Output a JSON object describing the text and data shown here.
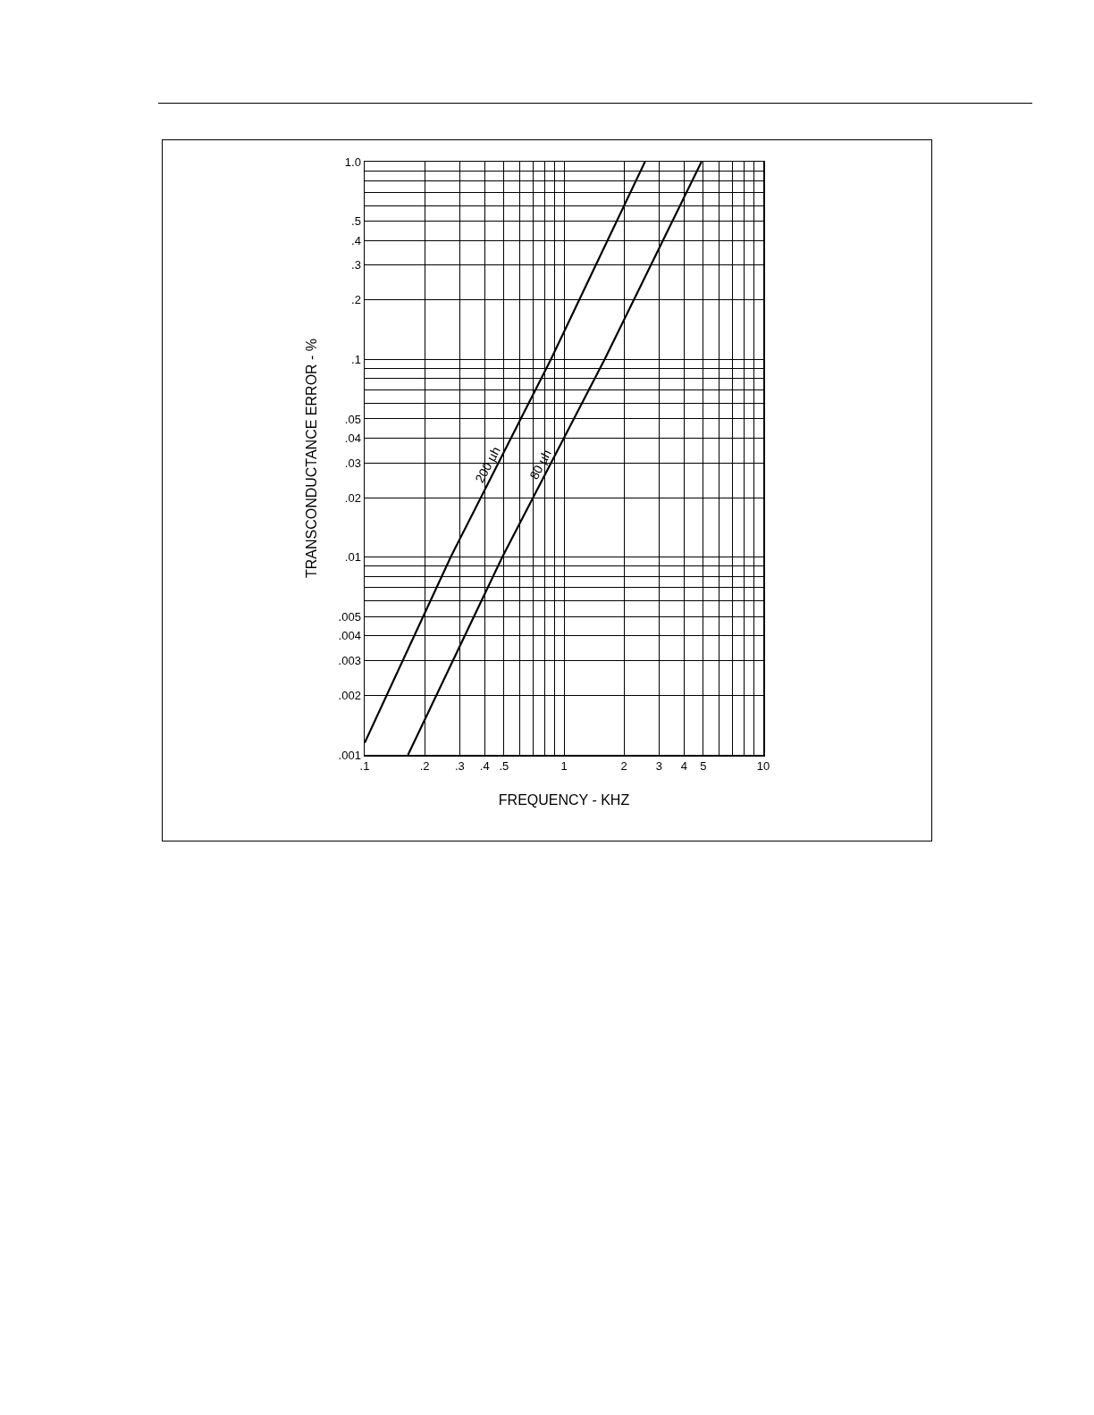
{
  "chart_data": {
    "type": "line",
    "xlabel": "FREQUENCY - KHZ",
    "ylabel": "TRANSCONDUCTANCE ERROR - %",
    "log": "xy",
    "grid": true,
    "marker": "none",
    "line_style": "solid",
    "xlim": [
      0.1,
      10
    ],
    "ylim": [
      0.001,
      1.0
    ],
    "xticks": [
      {
        "value": 0.1,
        "label": ".1"
      },
      {
        "value": 0.2,
        "label": ".2"
      },
      {
        "value": 0.3,
        "label": ".3"
      },
      {
        "value": 0.4,
        "label": ".4"
      },
      {
        "value": 0.5,
        "label": ".5"
      },
      {
        "value": 0.6,
        "label": null
      },
      {
        "value": 0.7,
        "label": null
      },
      {
        "value": 0.8,
        "label": null
      },
      {
        "value": 0.9,
        "label": null
      },
      1,
      2,
      3,
      4,
      5,
      {
        "value": 6,
        "label": null
      },
      {
        "value": 7,
        "label": null
      },
      {
        "value": 8,
        "label": null
      },
      {
        "value": 9,
        "label": null
      },
      10
    ],
    "yticks": [
      {
        "value": 0.001,
        "label": ".001"
      },
      {
        "value": 0.002,
        "label": ".002"
      },
      {
        "value": 0.003,
        "label": ".003"
      },
      {
        "value": 0.004,
        "label": ".004"
      },
      {
        "value": 0.005,
        "label": ".005"
      },
      {
        "value": 0.006,
        "label": null
      },
      {
        "value": 0.007,
        "label": null
      },
      {
        "value": 0.008,
        "label": null
      },
      {
        "value": 0.009,
        "label": null
      },
      {
        "value": 0.01,
        "label": ".01"
      },
      {
        "value": 0.02,
        "label": ".02"
      },
      {
        "value": 0.03,
        "label": ".03"
      },
      {
        "value": 0.04,
        "label": ".04"
      },
      {
        "value": 0.05,
        "label": ".05"
      },
      {
        "value": 0.06,
        "label": null
      },
      {
        "value": 0.07,
        "label": null
      },
      {
        "value": 0.08,
        "label": null
      },
      {
        "value": 0.09,
        "label": null
      },
      {
        "value": 0.1,
        "label": ".1"
      },
      {
        "value": 0.2,
        "label": ".2"
      },
      {
        "value": 0.3,
        "label": ".3"
      },
      {
        "value": 0.4,
        "label": ".4"
      },
      {
        "value": 0.5,
        "label": ".5"
      },
      {
        "value": 0.6,
        "label": null
      },
      {
        "value": 0.7,
        "label": null
      },
      {
        "value": 0.8,
        "label": null
      },
      {
        "value": 0.9,
        "label": null
      },
      {
        "value": 1.0,
        "label": "1.0"
      }
    ],
    "series": [
      {
        "name": "200 µh",
        "color": "#000000",
        "x": [
          0.1,
          0.27,
          0.86,
          2.55
        ],
        "values": [
          0.00115,
          0.01,
          0.1,
          1.0
        ]
      },
      {
        "name": "80 µh",
        "color": "#000000",
        "x": [
          0.165,
          0.49,
          1.6,
          4.9
        ],
        "values": [
          0.001,
          0.01,
          0.1,
          1.0
        ]
      }
    ]
  }
}
